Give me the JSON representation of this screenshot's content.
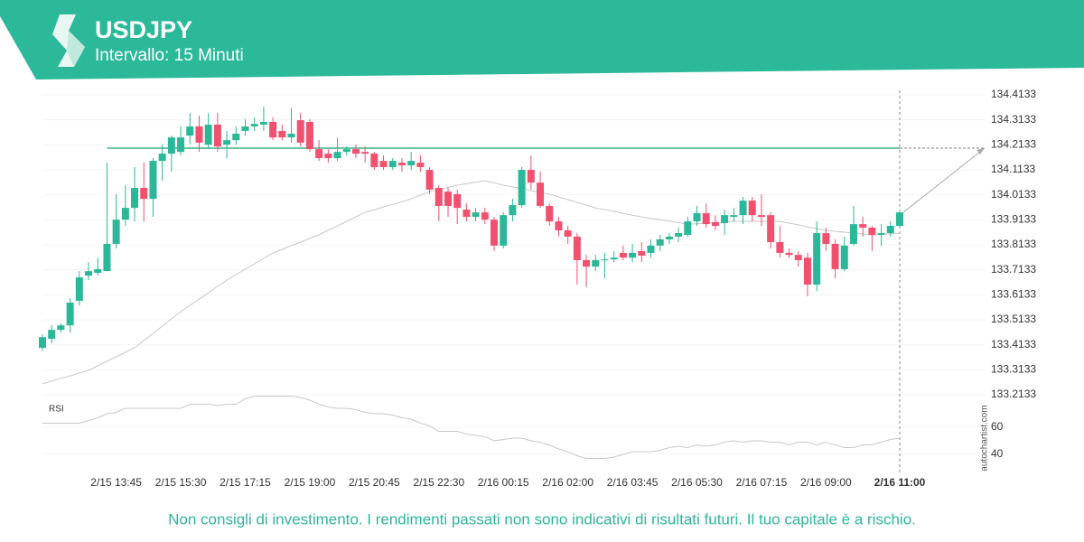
{
  "header": {
    "title": "USDJPY",
    "subtitle": "Intervallo: 15 Minuti"
  },
  "chart_data": {
    "type": "candlestick",
    "categories": [
      null,
      null,
      null,
      null,
      null,
      null,
      null,
      null,
      "2/15 13:45",
      null,
      null,
      null,
      null,
      null,
      null,
      "2/15 15:30",
      null,
      null,
      null,
      null,
      null,
      null,
      "2/15 17:15",
      null,
      null,
      null,
      null,
      null,
      null,
      "2/15 19:00",
      null,
      null,
      null,
      null,
      null,
      null,
      "2/15 20:45",
      null,
      null,
      null,
      null,
      null,
      null,
      "2/15 22:30",
      null,
      null,
      null,
      null,
      null,
      null,
      "2/16 00:15",
      null,
      null,
      null,
      null,
      null,
      null,
      "2/16 02:00",
      null,
      null,
      null,
      null,
      null,
      null,
      "2/16 03:45",
      null,
      null,
      null,
      null,
      null,
      null,
      "2/16 05:30",
      null,
      null,
      null,
      null,
      null,
      null,
      "2/16 07:15",
      null,
      null,
      null,
      null,
      null,
      null,
      "2/16 09:00",
      null,
      null,
      null,
      null,
      null,
      null,
      null,
      "2/16 11:00"
    ],
    "open": [
      133.401,
      133.437,
      133.473,
      133.491,
      133.589,
      133.69,
      133.701,
      133.708,
      133.817,
      133.914,
      133.961,
      134.041,
      133.997,
      134.149,
      134.178,
      134.185,
      134.25,
      134.287,
      134.214,
      134.294,
      134.214,
      134.232,
      134.269,
      134.287,
      134.294,
      134.305,
      134.269,
      134.243,
      134.312,
      134.305,
      134.196,
      134.178,
      134.16,
      134.185,
      134.196,
      134.185,
      134.178,
      134.149,
      134.124,
      134.142,
      134.131,
      134.142,
      134.113,
      134.041,
      134.026,
      134.016,
      133.954,
      133.925,
      133.943,
      133.914,
      133.81,
      133.932,
      133.972,
      134.113,
      134.062,
      133.969,
      133.907,
      133.871,
      133.846,
      133.752,
      133.726,
      133.752,
      133.755,
      133.781,
      133.762,
      133.788,
      133.781,
      133.81,
      133.835,
      133.846,
      133.853,
      133.907,
      133.94,
      133.904,
      133.9,
      133.925,
      133.932,
      133.99,
      133.932,
      133.932,
      133.824,
      133.781,
      133.773,
      133.762,
      133.654,
      133.86,
      133.817,
      133.716,
      133.817,
      133.896,
      133.882,
      133.853,
      133.86,
      133.889
    ],
    "high": [
      133.455,
      133.491,
      133.499,
      133.6,
      133.708,
      133.744,
      133.762,
      134.142,
      134.016,
      134.052,
      134.124,
      134.142,
      134.16,
      134.214,
      134.25,
      134.287,
      134.341,
      134.33,
      134.341,
      134.341,
      134.269,
      134.287,
      134.316,
      134.323,
      134.366,
      134.323,
      134.294,
      134.359,
      134.341,
      134.316,
      134.232,
      134.196,
      134.243,
      134.207,
      134.214,
      134.207,
      134.185,
      134.171,
      134.16,
      134.16,
      134.185,
      134.171,
      134.124,
      134.052,
      134.041,
      134.034,
      133.979,
      133.961,
      133.961,
      133.925,
      133.943,
      133.997,
      134.124,
      134.171,
      134.106,
      133.979,
      133.925,
      133.889,
      133.86,
      133.773,
      133.773,
      133.781,
      133.788,
      133.81,
      133.817,
      133.824,
      133.835,
      133.853,
      133.86,
      133.882,
      133.925,
      133.969,
      133.979,
      133.932,
      133.954,
      133.961,
      134.005,
      134.005,
      134.016,
      133.943,
      133.889,
      133.799,
      133.788,
      133.781,
      133.907,
      133.882,
      133.835,
      133.846,
      133.969,
      133.925,
      133.889,
      133.896,
      133.907,
      133.954
    ],
    "low": [
      133.39,
      133.419,
      133.462,
      133.462,
      133.571,
      133.672,
      133.69,
      133.708,
      133.799,
      133.889,
      133.907,
      133.907,
      133.925,
      134.07,
      134.106,
      134.171,
      134.214,
      134.185,
      134.196,
      134.185,
      134.16,
      134.214,
      134.25,
      134.269,
      134.269,
      134.232,
      134.232,
      134.222,
      134.207,
      134.185,
      134.149,
      134.142,
      134.149,
      134.171,
      134.16,
      134.142,
      134.113,
      134.113,
      134.113,
      134.106,
      134.113,
      134.106,
      134.016,
      133.907,
      133.925,
      133.896,
      133.907,
      133.907,
      133.896,
      133.788,
      133.799,
      133.907,
      133.961,
      134.034,
      133.961,
      133.889,
      133.846,
      133.817,
      133.654,
      133.643,
      133.708,
      133.679,
      133.744,
      133.752,
      133.744,
      133.744,
      133.762,
      133.788,
      133.817,
      133.824,
      133.846,
      133.889,
      133.882,
      133.871,
      133.853,
      133.907,
      133.896,
      133.907,
      133.889,
      133.799,
      133.762,
      133.762,
      133.726,
      133.607,
      133.629,
      133.788,
      133.679,
      133.708,
      133.81,
      133.846,
      133.788,
      133.81,
      133.846,
      133.882
    ],
    "close": [
      133.444,
      133.473,
      133.491,
      133.582,
      133.683,
      133.708,
      133.716,
      133.817,
      133.914,
      133.961,
      134.041,
      133.997,
      134.149,
      134.178,
      134.243,
      134.243,
      134.287,
      134.222,
      134.294,
      134.207,
      134.232,
      134.258,
      134.287,
      134.297,
      134.305,
      134.243,
      134.243,
      134.258,
      134.222,
      134.196,
      134.16,
      134.16,
      134.185,
      134.196,
      134.178,
      134.178,
      134.124,
      134.124,
      134.149,
      134.131,
      134.149,
      134.124,
      134.034,
      133.969,
      133.969,
      133.961,
      133.925,
      133.943,
      133.914,
      133.81,
      133.932,
      133.972,
      134.113,
      134.062,
      133.969,
      133.907,
      133.871,
      133.846,
      133.752,
      133.726,
      133.752,
      133.755,
      133.762,
      133.762,
      133.781,
      133.77,
      133.81,
      133.835,
      133.846,
      133.86,
      133.907,
      133.94,
      133.896,
      133.889,
      133.932,
      133.932,
      133.99,
      133.932,
      133.925,
      133.824,
      133.781,
      133.773,
      133.752,
      133.654,
      133.86,
      133.817,
      133.716,
      133.81,
      133.896,
      133.882,
      133.853,
      133.86,
      133.889,
      133.943
    ],
    "up_color": "#2bb898",
    "down_color": "#f2506f",
    "ylim": [
      133.2133,
      134.4133
    ],
    "yticks": [
      134.4133,
      134.3133,
      134.2133,
      134.1133,
      134.0133,
      133.9133,
      133.8133,
      133.7133,
      133.6133,
      133.5133,
      133.4133,
      133.3133,
      133.2133
    ],
    "grid": true,
    "level": 134.2,
    "level_color": "#6cc3a0",
    "ma": [
      133.257,
      133.268,
      133.279,
      133.289,
      133.3,
      133.311,
      133.329,
      133.347,
      133.365,
      133.383,
      133.401,
      133.43,
      133.459,
      133.488,
      133.517,
      133.546,
      133.571,
      133.596,
      133.621,
      133.647,
      133.672,
      133.694,
      133.716,
      133.737,
      133.759,
      133.781,
      133.795,
      133.81,
      133.824,
      133.839,
      133.853,
      133.871,
      133.889,
      133.907,
      133.925,
      133.943,
      133.954,
      133.965,
      133.975,
      133.986,
      133.997,
      134.012,
      134.026,
      134.035,
      134.043,
      134.052,
      134.058,
      134.064,
      134.07,
      134.061,
      134.052,
      134.045,
      134.038,
      134.03,
      134.023,
      134.016,
      134.005,
      133.994,
      133.983,
      133.972,
      133.961,
      133.954,
      133.947,
      133.939,
      133.932,
      133.925,
      133.919,
      133.913,
      133.908,
      133.902,
      133.896,
      133.898,
      133.9,
      133.903,
      133.905,
      133.907,
      133.907,
      133.907,
      133.907,
      133.907,
      133.907,
      133.9,
      133.893,
      133.885,
      133.878,
      133.871,
      133.867,
      133.864,
      133.86,
      133.857,
      133.853,
      133.855,
      133.858,
      133.86
    ],
    "ma_color": "#c8c8c8",
    "rsi": {
      "label": "RSI",
      "color": "#c8c8c8",
      "values": [
        63,
        63,
        63,
        63,
        63,
        65,
        67,
        70,
        71,
        74,
        74,
        74,
        74,
        74,
        74,
        74,
        77,
        77,
        77,
        76,
        77,
        77,
        81,
        83,
        83,
        83,
        83,
        83,
        82,
        80,
        77,
        75,
        74,
        74,
        73,
        71,
        70,
        70,
        69,
        67,
        66,
        63,
        61,
        57,
        57,
        57,
        55,
        54,
        53,
        50,
        51,
        52,
        52,
        50,
        49,
        47,
        44,
        42,
        39,
        37,
        37,
        37,
        38,
        40,
        42,
        42,
        42,
        43,
        45,
        46,
        45,
        47,
        46,
        47,
        49,
        50,
        49,
        50,
        50,
        49,
        49,
        47,
        49,
        49,
        47,
        49,
        47,
        45,
        45,
        47,
        47,
        49,
        51,
        52
      ],
      "ylim": [
        30,
        85
      ],
      "yticks": [
        40,
        60
      ]
    },
    "watermark": "autochartist.com"
  },
  "footer": "Non consigli di investimento. I rendimenti passati non sono indicativi di risultati futuri. Il tuo capitale è a rischio."
}
